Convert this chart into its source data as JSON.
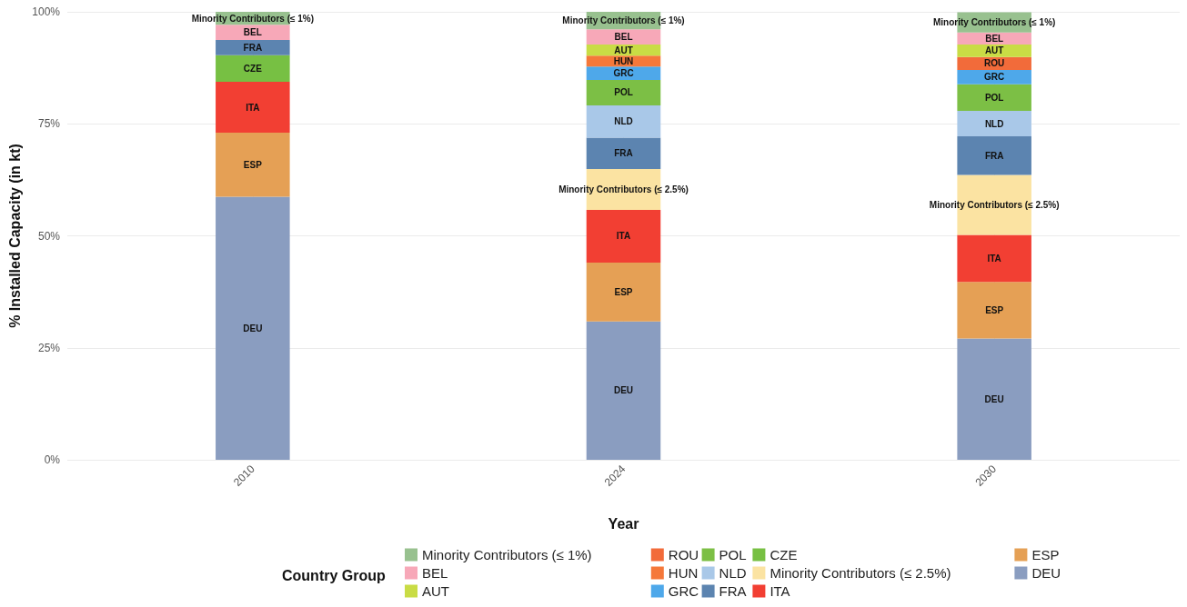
{
  "chart_data": {
    "type": "bar",
    "stacked": true,
    "xlabel": "Year",
    "ylabel": "% Installed Capacity (in kt)",
    "legend_title": "Country Group",
    "legend": "bottom",
    "grid": true,
    "categories": [
      "2010",
      "2024",
      "2030"
    ],
    "ylim": [
      0,
      100
    ],
    "yticks": [
      {
        "value": 0,
        "label": "0%"
      },
      {
        "value": 25,
        "label": "25%"
      },
      {
        "value": 50,
        "label": "50%"
      },
      {
        "value": 75,
        "label": "75%"
      },
      {
        "value": 100,
        "label": "100%"
      }
    ],
    "series": [
      {
        "name": "DEU",
        "color": "#8a9dc0",
        "values": [
          58.7,
          30.9,
          27.1
        ]
      },
      {
        "name": "ESP",
        "color": "#e5a055",
        "values": [
          14.3,
          13.1,
          12.6
        ]
      },
      {
        "name": "ITA",
        "color": "#f23f33",
        "values": [
          11.4,
          11.8,
          10.5
        ]
      },
      {
        "name": "Minority Contributors (≤ 2.5%)",
        "color": "#fbe3a2",
        "values": [
          null,
          9.1,
          13.4
        ]
      },
      {
        "name": "CZE",
        "color": "#77c043",
        "values": [
          5.9,
          null,
          null
        ]
      },
      {
        "name": "FRA",
        "color": "#5c84b0",
        "values": [
          3.4,
          7.0,
          8.6
        ]
      },
      {
        "name": "NLD",
        "color": "#a9c8e8",
        "values": [
          null,
          7.2,
          5.7
        ]
      },
      {
        "name": "POL",
        "color": "#7cbf45",
        "values": [
          null,
          5.7,
          5.9
        ]
      },
      {
        "name": "GRC",
        "color": "#4ea8ea",
        "values": [
          null,
          3.0,
          3.2
        ]
      },
      {
        "name": "HUN",
        "color": "#f5783a",
        "values": [
          null,
          2.4,
          null
        ]
      },
      {
        "name": "ROU",
        "color": "#f26b3a",
        "values": [
          null,
          null,
          2.9
        ]
      },
      {
        "name": "AUT",
        "color": "#c9dc45",
        "values": [
          null,
          2.5,
          2.8
        ]
      },
      {
        "name": "BEL",
        "color": "#f7a8b8",
        "values": [
          3.4,
          3.4,
          2.7
        ]
      },
      {
        "name": "Minority Contributors (≤ 1%)",
        "color": "#98c18f",
        "values": [
          2.9,
          3.9,
          4.5
        ]
      }
    ]
  }
}
